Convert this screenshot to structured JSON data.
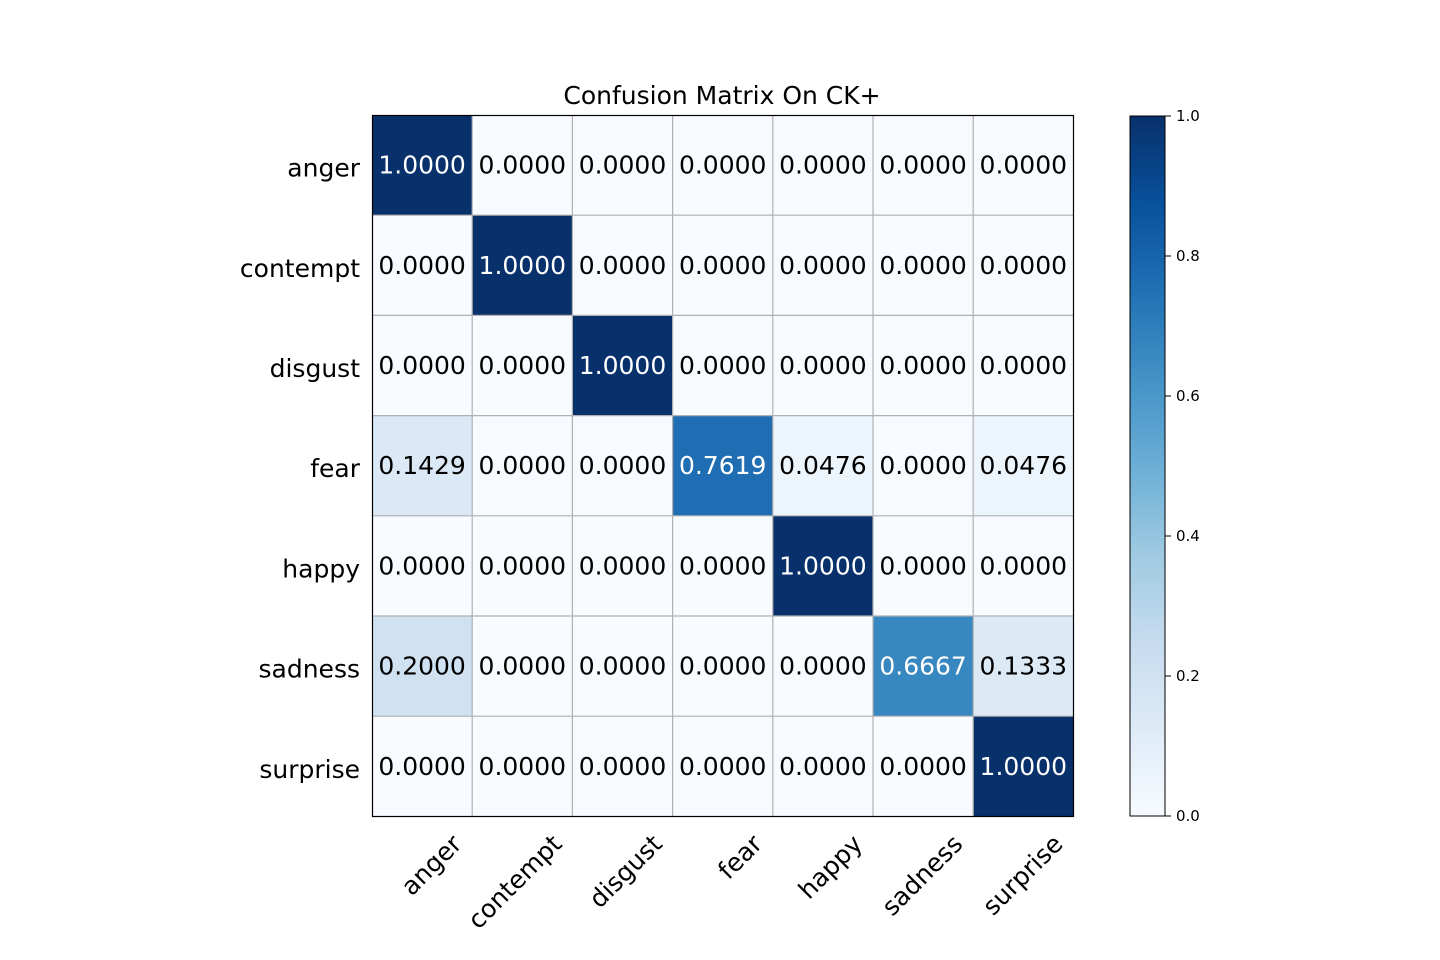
{
  "chart_data": {
    "type": "heatmap",
    "title": "Confusion Matrix On CK+",
    "xlabel": "",
    "ylabel": "",
    "row_labels": [
      "anger",
      "contempt",
      "disgust",
      "fear",
      "happy",
      "sadness",
      "surprise"
    ],
    "col_labels": [
      "anger",
      "contempt",
      "disgust",
      "fear",
      "happy",
      "sadness",
      "surprise"
    ],
    "values": [
      [
        1.0,
        0.0,
        0.0,
        0.0,
        0.0,
        0.0,
        0.0
      ],
      [
        0.0,
        1.0,
        0.0,
        0.0,
        0.0,
        0.0,
        0.0
      ],
      [
        0.0,
        0.0,
        1.0,
        0.0,
        0.0,
        0.0,
        0.0
      ],
      [
        0.1429,
        0.0,
        0.0,
        0.7619,
        0.0476,
        0.0,
        0.0476
      ],
      [
        0.0,
        0.0,
        0.0,
        0.0,
        1.0,
        0.0,
        0.0
      ],
      [
        0.2,
        0.0,
        0.0,
        0.0,
        0.0,
        0.6667,
        0.1333
      ],
      [
        0.0,
        0.0,
        0.0,
        0.0,
        0.0,
        0.0,
        1.0
      ]
    ],
    "value_format_decimals": 4,
    "colormap": "Blues",
    "vmin": 0.0,
    "vmax": 1.0,
    "grid": true,
    "colorbar": {
      "ticks": [
        0.0,
        0.2,
        0.4,
        0.6,
        0.8,
        1.0
      ],
      "tick_labels": [
        "0.0",
        "0.2",
        "0.4",
        "0.6",
        "0.8",
        "1.0"
      ]
    },
    "x_tick_rotation_deg": 45,
    "colors": {
      "grid": "#b0b0b0",
      "frame": "#000000",
      "text_dark": "#000000",
      "text_light": "#ffffff"
    }
  }
}
